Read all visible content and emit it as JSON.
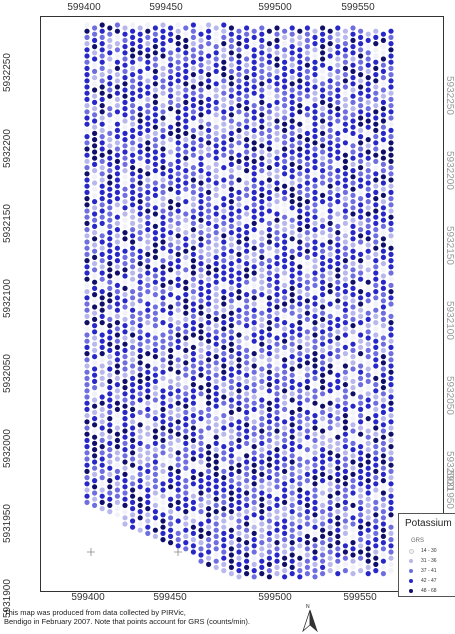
{
  "map": {
    "x_ticks_top": [
      "599400",
      "599450",
      "599500",
      "599550"
    ],
    "x_ticks_bottom": [
      "599400",
      "599450",
      "599500",
      "599550"
    ],
    "y_ticks_left": [
      "5932250",
      "5932200",
      "5932150",
      "5932100",
      "5932050",
      "5932000",
      "5931950",
      "5931900"
    ],
    "y_ticks_right": [
      "5932250",
      "5932200",
      "5932150",
      "5932100",
      "5932050",
      "5932000",
      "5931950"
    ],
    "caption_line1": "This map was produced from data collected by PIRVic,",
    "caption_line2": "Bendigo in February 2007. Note that points account for GRS (counts/min).",
    "north_label": "N"
  },
  "legend": {
    "title": "Potassium",
    "subtitle": "GRS",
    "classes": [
      {
        "label": "14 - 30",
        "color": "#f2f2fa"
      },
      {
        "label": "31 - 36",
        "color": "#b8b8ec"
      },
      {
        "label": "37 - 41",
        "color": "#6e6ee0"
      },
      {
        "label": "42 - 47",
        "color": "#2828c8"
      },
      {
        "label": "48 - 68",
        "color": "#10106a"
      }
    ]
  },
  "colors": {
    "frame": "#333333",
    "dot_palette": [
      "#f2f2fa",
      "#b8b8ec",
      "#6e6ee0",
      "#2828c8",
      "#10106a"
    ]
  }
}
